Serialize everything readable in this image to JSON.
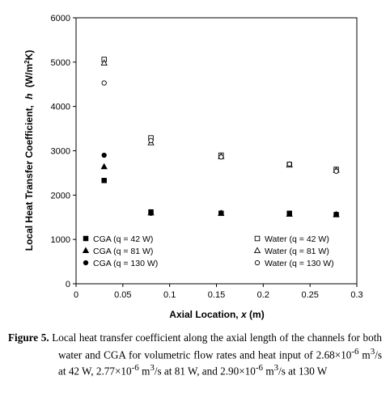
{
  "chart_data": {
    "type": "scatter",
    "xlabel_text": "Axial Location,",
    "xlabel_var": "x",
    "xlabel_unit": "(m)",
    "ylabel_text": "Local Heat Transfer Coefficient,",
    "ylabel_var": "h",
    "ylabel_unit": "(W/m",
    "ylabel_unit_sup": "2",
    "ylabel_unit_end": "K)",
    "xlim": [
      0,
      0.3
    ],
    "ylim": [
      0,
      6000
    ],
    "xticks": [
      "0",
      "0.05",
      "0.1",
      "0.15",
      "0.2",
      "0.25",
      "0.3"
    ],
    "yticks": [
      "0",
      "1000",
      "2000",
      "3000",
      "4000",
      "5000",
      "6000"
    ],
    "grid": false,
    "legend_placement": "bottom",
    "series": [
      {
        "name": "CGA (q = 42 W)",
        "marker": "filled-square",
        "x": [
          0.03,
          0.08,
          0.155,
          0.228,
          0.278
        ],
        "y": [
          2330,
          1620,
          1590,
          1590,
          1560
        ]
      },
      {
        "name": "CGA (q = 81 W)",
        "marker": "filled-triangle",
        "x": [
          0.03,
          0.08,
          0.155,
          0.228,
          0.278
        ],
        "y": [
          2640,
          1600,
          1590,
          1570,
          1560
        ]
      },
      {
        "name": "CGA (q = 130 W)",
        "marker": "filled-circle",
        "x": [
          0.03,
          0.08,
          0.155,
          0.228,
          0.278
        ],
        "y": [
          2900,
          1590,
          1600,
          1580,
          1570
        ]
      },
      {
        "name": "Water (q = 42 W)",
        "marker": "open-square",
        "x": [
          0.03,
          0.08,
          0.155,
          0.228,
          0.278
        ],
        "y": [
          5060,
          3290,
          2900,
          2690,
          2580
        ]
      },
      {
        "name": "Water (q = 81 W)",
        "marker": "open-triangle",
        "x": [
          0.03,
          0.08,
          0.155,
          0.228,
          0.278
        ],
        "y": [
          4980,
          3180,
          2870,
          2680,
          2560
        ]
      },
      {
        "name": "Water (q = 130 W)",
        "marker": "open-circle",
        "x": [
          0.03,
          0.08,
          0.155,
          0.228,
          0.278
        ],
        "y": [
          4530,
          3230,
          2860,
          2700,
          2540
        ]
      }
    ]
  },
  "caption": {
    "label": "Figure 5.",
    "part1": " Local heat transfer coefficient along the axial length of the channels for both water and CGA for volumetric flow rates and heat input of 2.68×10",
    "exp1": "-6",
    "part2": " m",
    "sup2": "3",
    "part3": "/s at 42 W, 2.77×10",
    "exp3": "-6",
    "part4": " m",
    "sup4": "3",
    "part5": "/s at 81 W, and 2.90×10",
    "exp5": "-6",
    "part6": " m",
    "sup6": "3",
    "part7": "/s at 130 W"
  }
}
